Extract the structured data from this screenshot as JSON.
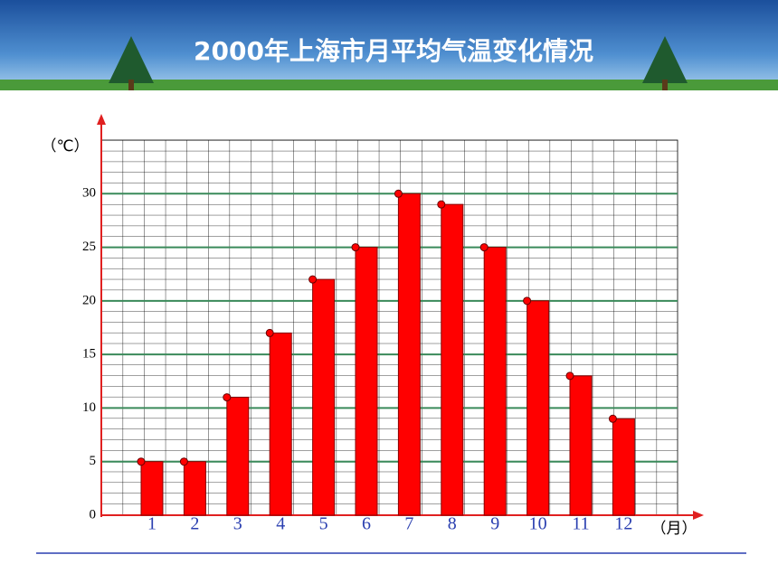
{
  "chart_data": {
    "type": "bar",
    "title": "2000年上海市月平均气温变化情况",
    "y_label": "（℃）",
    "x_label": "（月）",
    "categories": [
      "1",
      "2",
      "3",
      "4",
      "5",
      "6",
      "7",
      "8",
      "9",
      "10",
      "11",
      "12"
    ],
    "values": [
      5,
      5,
      11,
      17,
      22,
      25,
      30,
      29,
      25,
      20,
      13,
      9
    ],
    "color": "#ff0000",
    "ylim": [
      0,
      35
    ],
    "yticks": [
      0,
      5,
      10,
      15,
      20,
      25,
      30
    ],
    "grid": true
  }
}
